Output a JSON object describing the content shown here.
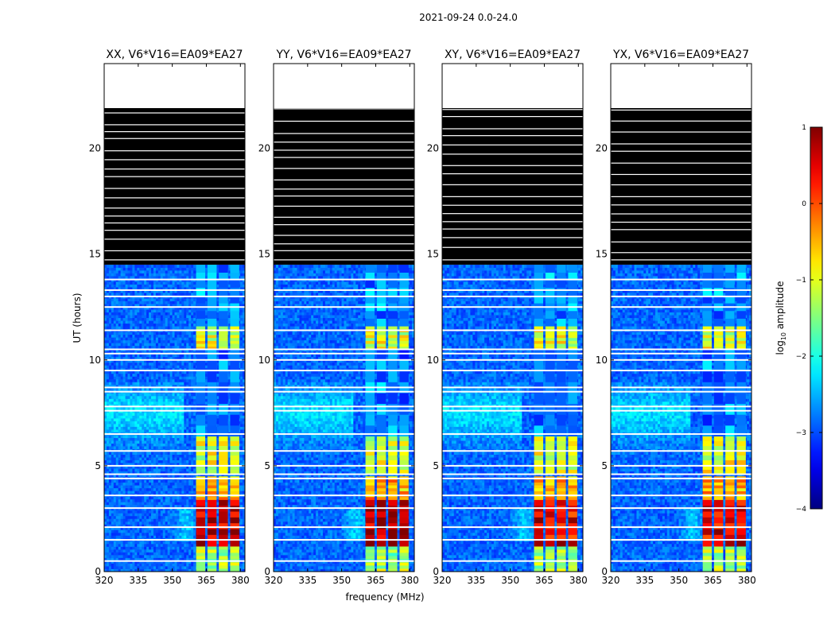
{
  "figure": {
    "suptitle": "2021-09-24 0.0-24.0",
    "xlabel": "frequency (MHz)",
    "ylabel": "UT (hours)",
    "colorbar_label": "log10 amplitude",
    "colorbar_label_base": "log",
    "colorbar_label_sub": "10",
    "colorbar_label_rest": " amplitude",
    "colorbar_ticks": [
      1,
      0,
      -1,
      -2,
      -3,
      -4
    ],
    "colorbar_tick_labels": [
      "1",
      "0",
      "−1",
      "−2",
      "−3",
      "−4"
    ],
    "colorbar_range": [
      -4,
      1
    ],
    "colormap": "jet"
  },
  "chart_data": [
    {
      "type": "heatmap",
      "title": "XX, V6*V16=EA09*EA27",
      "x_range": [
        320,
        382
      ],
      "y_range": [
        0,
        24
      ],
      "x_ticks": [
        320,
        335,
        350,
        365,
        380
      ],
      "x_tick_labels": [
        "320",
        "335",
        "350",
        "365",
        "380"
      ],
      "y_ticks": [
        0,
        5,
        10,
        15,
        20
      ],
      "y_tick_labels": [
        "0",
        "5",
        "10",
        "15",
        "20"
      ],
      "rfi_bands_MHz": [
        [
          360.5,
          364.5
        ],
        [
          365.5,
          369.5
        ],
        [
          370.5,
          374.5
        ],
        [
          375.5,
          379.5
        ]
      ],
      "peak_log_amplitude": 0.8,
      "flagged_rows_hours": [
        0.5,
        1.5,
        2.1,
        3.0,
        3.6,
        4.4,
        4.6,
        5.0,
        5.7,
        6.5,
        7.6,
        7.8,
        8.5,
        8.7,
        9.5,
        10.0,
        10.3,
        10.5,
        11.4,
        12.5,
        13.0,
        13.3,
        13.8
      ],
      "no_data_rows_hours": [
        [
          21.9,
          24.0
        ]
      ],
      "flagged_block_hours": [
        [
          14.5,
          21.9
        ]
      ]
    },
    {
      "type": "heatmap",
      "title": "YY, V6*V16=EA09*EA27",
      "x_range": [
        320,
        382
      ],
      "y_range": [
        0,
        24
      ],
      "x_ticks": [
        320,
        335,
        350,
        365,
        380
      ],
      "x_tick_labels": [
        "320",
        "335",
        "350",
        "365",
        "380"
      ],
      "y_ticks": [
        0,
        5,
        10,
        15,
        20
      ],
      "y_tick_labels": [
        "0",
        "5",
        "10",
        "15",
        "20"
      ],
      "rfi_bands_MHz": [
        [
          360.5,
          364.5
        ],
        [
          365.5,
          369.5
        ],
        [
          370.5,
          374.5
        ],
        [
          375.5,
          379.5
        ]
      ],
      "peak_log_amplitude": 0.9,
      "flagged_rows_hours": [
        0.5,
        1.5,
        2.1,
        3.0,
        3.6,
        4.4,
        4.6,
        5.0,
        5.7,
        6.5,
        7.6,
        7.8,
        8.5,
        8.7,
        9.5,
        10.0,
        10.3,
        10.5,
        11.4,
        12.5,
        13.0,
        13.3,
        13.8
      ],
      "no_data_rows_hours": [
        [
          21.9,
          24.0
        ]
      ],
      "flagged_block_hours": [
        [
          14.5,
          21.9
        ]
      ]
    },
    {
      "type": "heatmap",
      "title": "XY, V6*V16=EA09*EA27",
      "x_range": [
        320,
        382
      ],
      "y_range": [
        0,
        24
      ],
      "x_ticks": [
        320,
        335,
        350,
        365,
        380
      ],
      "x_tick_labels": [
        "320",
        "335",
        "350",
        "365",
        "380"
      ],
      "y_ticks": [
        0,
        5,
        10,
        15,
        20
      ],
      "y_tick_labels": [
        "0",
        "5",
        "10",
        "15",
        "20"
      ],
      "rfi_bands_MHz": [
        [
          360.5,
          364.5
        ],
        [
          365.5,
          369.5
        ],
        [
          370.5,
          374.5
        ],
        [
          375.5,
          379.5
        ]
      ],
      "peak_log_amplitude": 0.6,
      "flagged_rows_hours": [
        0.5,
        1.5,
        2.1,
        3.0,
        3.6,
        4.4,
        4.6,
        5.0,
        5.7,
        6.5,
        7.6,
        7.8,
        8.5,
        8.7,
        9.5,
        10.0,
        10.3,
        10.5,
        11.4,
        12.5,
        13.0,
        13.3,
        13.8
      ],
      "no_data_rows_hours": [
        [
          21.9,
          24.0
        ]
      ],
      "flagged_block_hours": [
        [
          14.5,
          21.9
        ]
      ]
    },
    {
      "type": "heatmap",
      "title": "YX, V6*V16=EA09*EA27",
      "x_range": [
        320,
        382
      ],
      "y_range": [
        0,
        24
      ],
      "x_ticks": [
        320,
        335,
        350,
        365,
        380
      ],
      "x_tick_labels": [
        "320",
        "335",
        "350",
        "365",
        "380"
      ],
      "y_ticks": [
        0,
        5,
        10,
        15,
        20
      ],
      "y_tick_labels": [
        "0",
        "5",
        "10",
        "15",
        "20"
      ],
      "rfi_bands_MHz": [
        [
          360.5,
          364.5
        ],
        [
          365.5,
          369.5
        ],
        [
          370.5,
          374.5
        ],
        [
          375.5,
          379.5
        ]
      ],
      "peak_log_amplitude": 0.6,
      "flagged_rows_hours": [
        0.5,
        1.5,
        2.1,
        3.0,
        3.6,
        4.4,
        4.6,
        5.0,
        5.7,
        6.5,
        7.6,
        7.8,
        8.5,
        8.7,
        9.5,
        10.0,
        10.3,
        10.5,
        11.4,
        12.5,
        13.0,
        13.3,
        13.8
      ],
      "no_data_rows_hours": [
        [
          21.9,
          24.0
        ]
      ],
      "flagged_block_hours": [
        [
          14.5,
          21.9
        ]
      ]
    }
  ]
}
